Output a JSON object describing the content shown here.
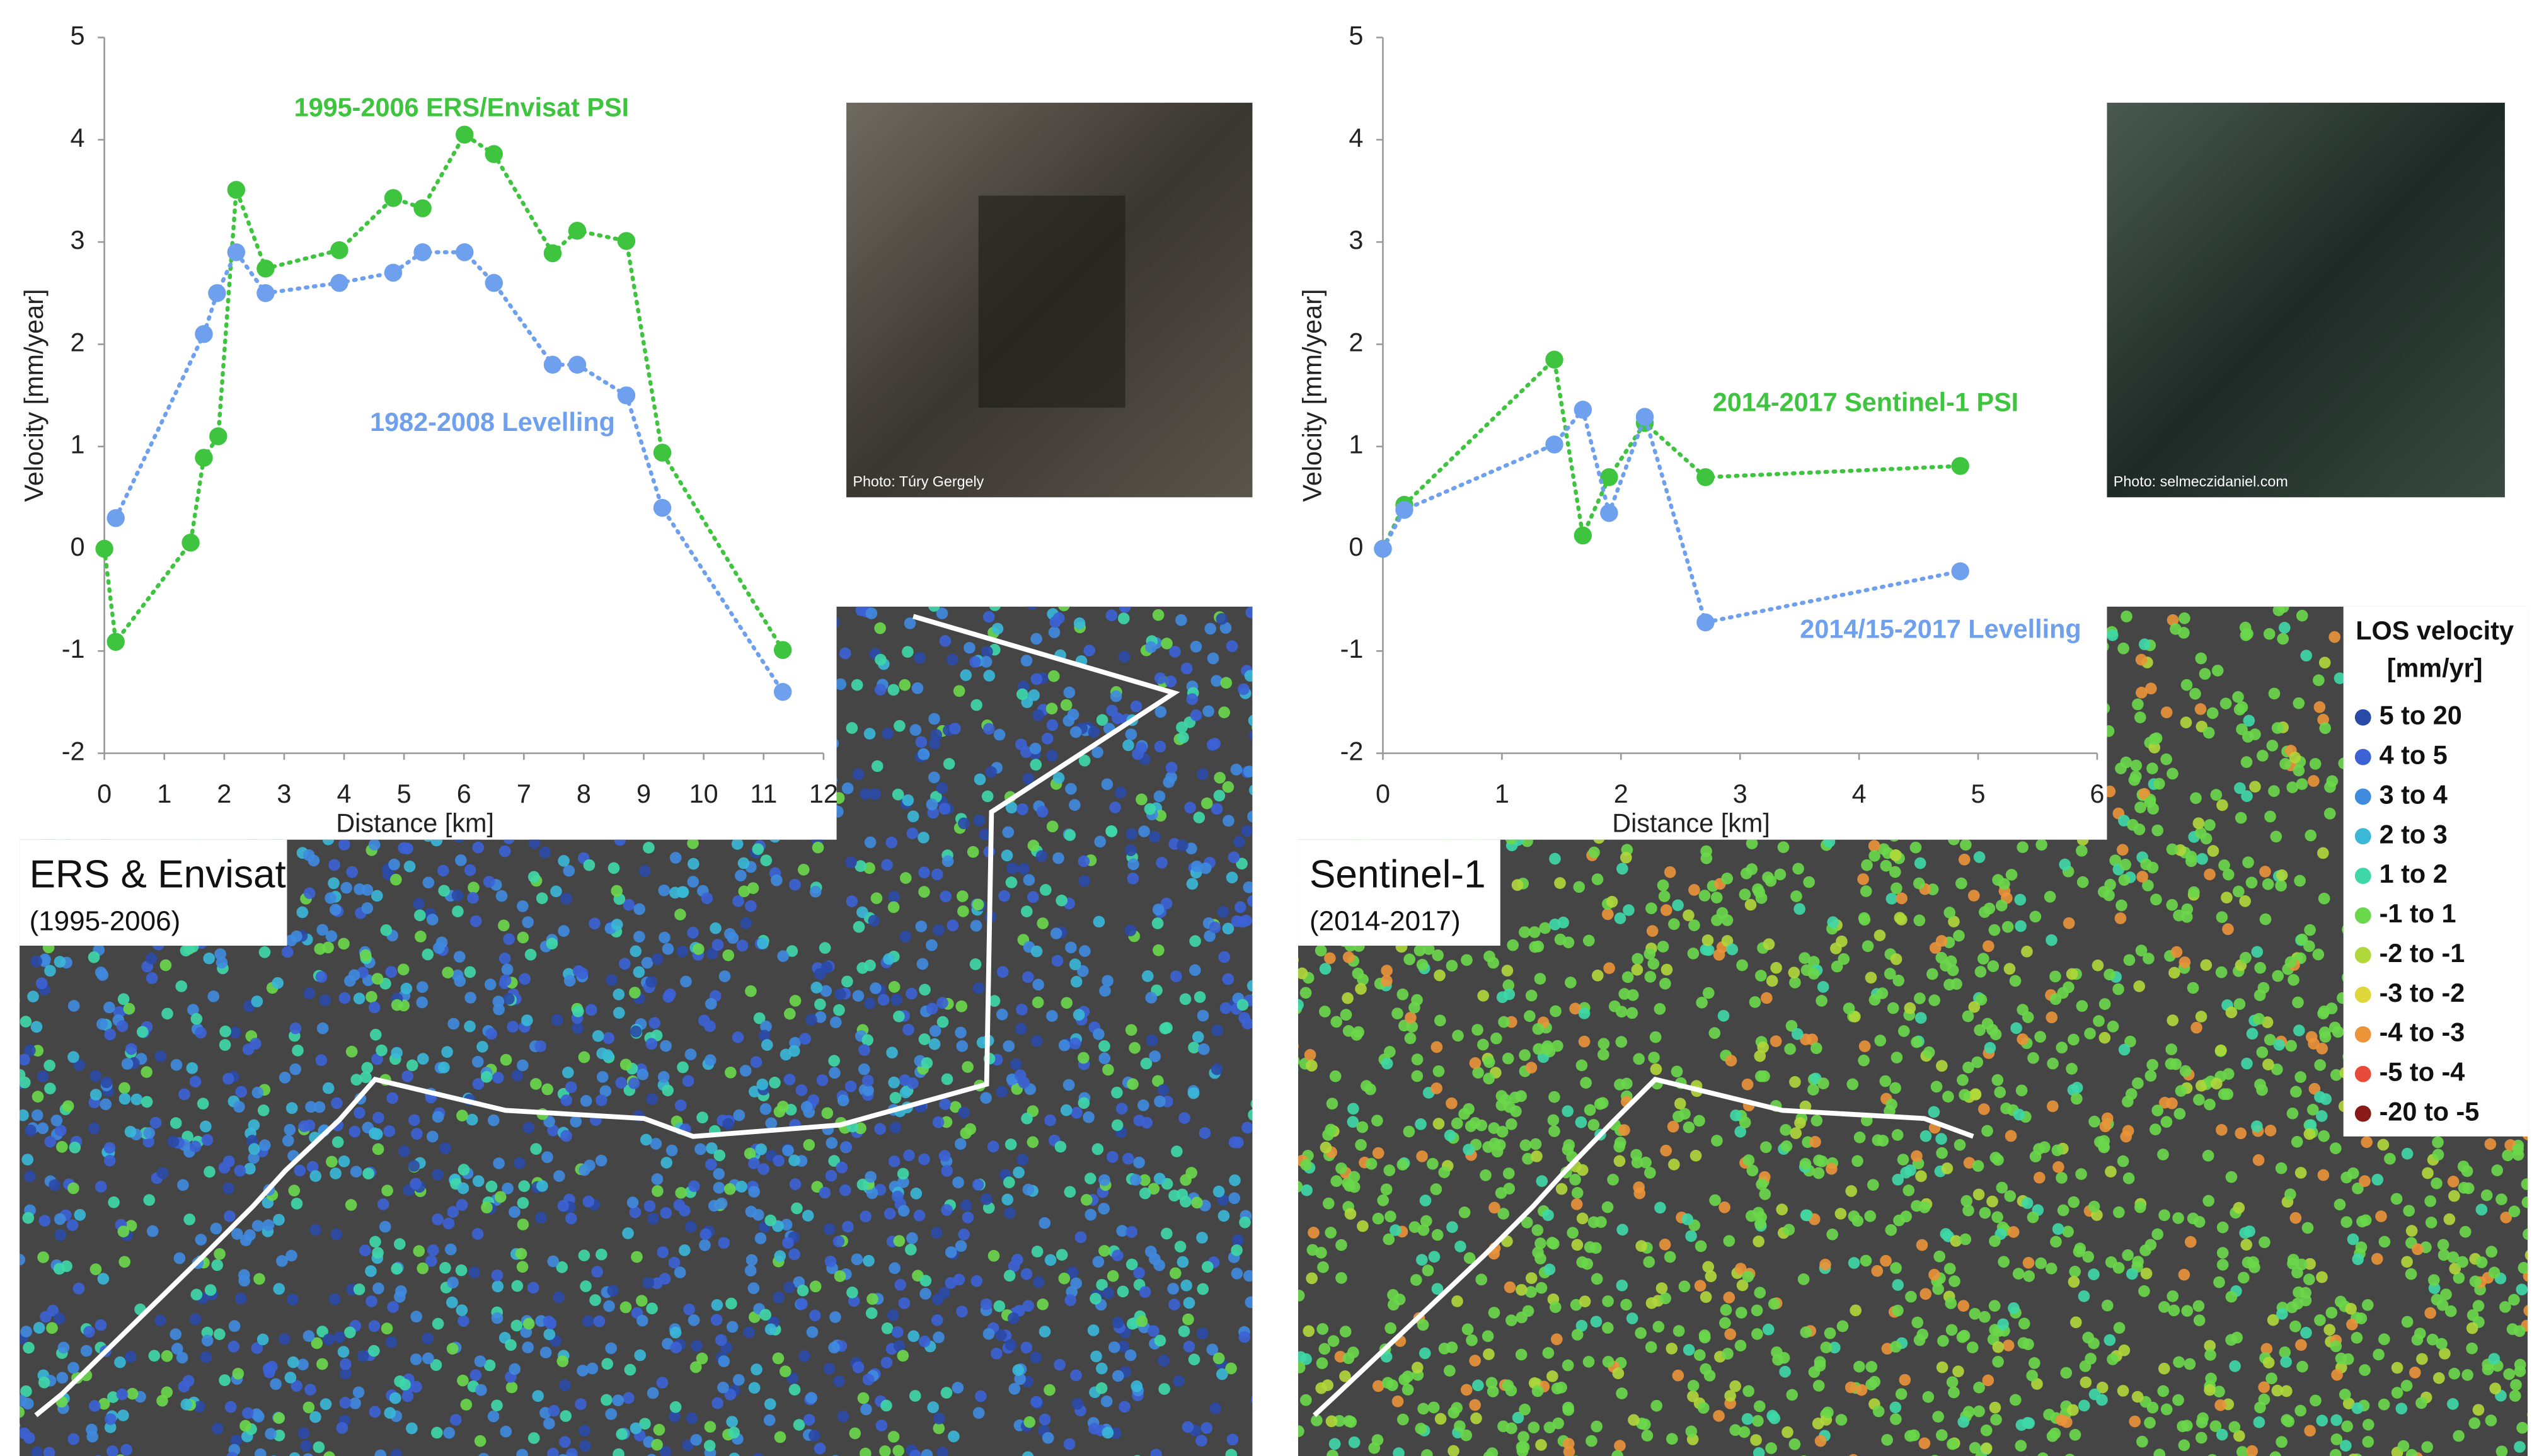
{
  "chart_data": [
    {
      "type": "line",
      "ylabel": "Velocity [mm/year]",
      "xlabel": "Distance [km]",
      "xlim": [
        0,
        12
      ],
      "xticks": [
        0,
        1,
        2,
        3,
        4,
        5,
        6,
        7,
        8,
        9,
        10,
        11,
        12
      ],
      "ylim": [
        -2,
        5
      ],
      "yticks": [
        -2,
        -1,
        0,
        1,
        2,
        3,
        4,
        5
      ],
      "series": [
        {
          "name": "1995-2006 ERS/Envisat PSI",
          "color": "#3ec43e",
          "x": [
            0,
            0.19,
            1.44,
            1.66,
            1.9,
            2.2,
            2.69,
            3.92,
            4.82,
            5.31,
            6.01,
            6.5,
            7.48,
            7.89,
            8.71,
            9.31,
            11.32
          ],
          "values": [
            0,
            -0.91,
            0.06,
            0.89,
            1.1,
            3.51,
            2.74,
            2.92,
            3.43,
            3.33,
            4.05,
            3.86,
            2.89,
            3.11,
            3.01,
            0.94,
            -0.99
          ]
        },
        {
          "name": "1982-2008 Levelling",
          "color": "#6ea0ee",
          "x": [
            0.19,
            1.66,
            1.88,
            2.2,
            2.69,
            3.92,
            4.82,
            5.31,
            6.01,
            6.5,
            7.48,
            7.89,
            8.71,
            9.31,
            11.32
          ],
          "values": [
            0.3,
            2.1,
            2.5,
            2.9,
            2.5,
            2.6,
            2.7,
            2.9,
            2.9,
            2.6,
            1.8,
            1.8,
            1.5,
            0.4,
            -1.4
          ]
        }
      ]
    },
    {
      "type": "line",
      "ylabel": "Velocity [mm/year]",
      "xlabel": "Distance [km]",
      "xlim": [
        0,
        6
      ],
      "xticks": [
        0,
        1,
        2,
        3,
        4,
        5,
        6
      ],
      "ylim": [
        -2,
        5
      ],
      "yticks": [
        -2,
        -1,
        0,
        1,
        2,
        3,
        4,
        5
      ],
      "series": [
        {
          "name": "2014-2017 Sentinel-1 PSI",
          "color": "#3ec43e",
          "x": [
            0,
            0.18,
            1.44,
            1.68,
            1.9,
            2.2,
            2.71,
            4.85
          ],
          "values": [
            0,
            0.43,
            1.85,
            0.13,
            0.7,
            1.23,
            0.7,
            0.81
          ]
        },
        {
          "name": "2014/15-2017 Levelling",
          "color": "#6ea0ee",
          "x": [
            0,
            0.18,
            1.44,
            1.68,
            1.9,
            2.2,
            2.71,
            4.85
          ],
          "values": [
            0,
            0.38,
            1.02,
            1.36,
            0.35,
            1.29,
            -0.72,
            -0.22
          ]
        }
      ]
    }
  ],
  "figure": {
    "photos": [
      "Photo:  Túry Gergely",
      "Photo: selmeczidaniel.com"
    ],
    "maps": [
      {
        "title": "ERS & Envisat",
        "period": "(1995-2006)"
      },
      {
        "title": "Sentinel-1",
        "period": "(2014-2017)"
      }
    ],
    "legend": {
      "title": "LOS velocity",
      "unit": "[mm/yr]",
      "items": [
        {
          "label": "5 to 20",
          "color": "#2a4aa8"
        },
        {
          "label": "4 to 5",
          "color": "#3c62d6"
        },
        {
          "label": "3 to 4",
          "color": "#3f8be0"
        },
        {
          "label": "2 to 3",
          "color": "#3ab8d8"
        },
        {
          "label": "1 to 2",
          "color": "#3ed8a8"
        },
        {
          "label": "-1 to 1",
          "color": "#6ad84a"
        },
        {
          "label": "-2 to -1",
          "color": "#b0d83a"
        },
        {
          "label": "-3 to -2",
          "color": "#e0d83a"
        },
        {
          "label": "-4 to -3",
          "color": "#eb9438"
        },
        {
          "label": "-5 to -4",
          "color": "#e84a3a"
        },
        {
          "label": "-20 to -5",
          "color": "#8a1a1a"
        }
      ]
    }
  }
}
